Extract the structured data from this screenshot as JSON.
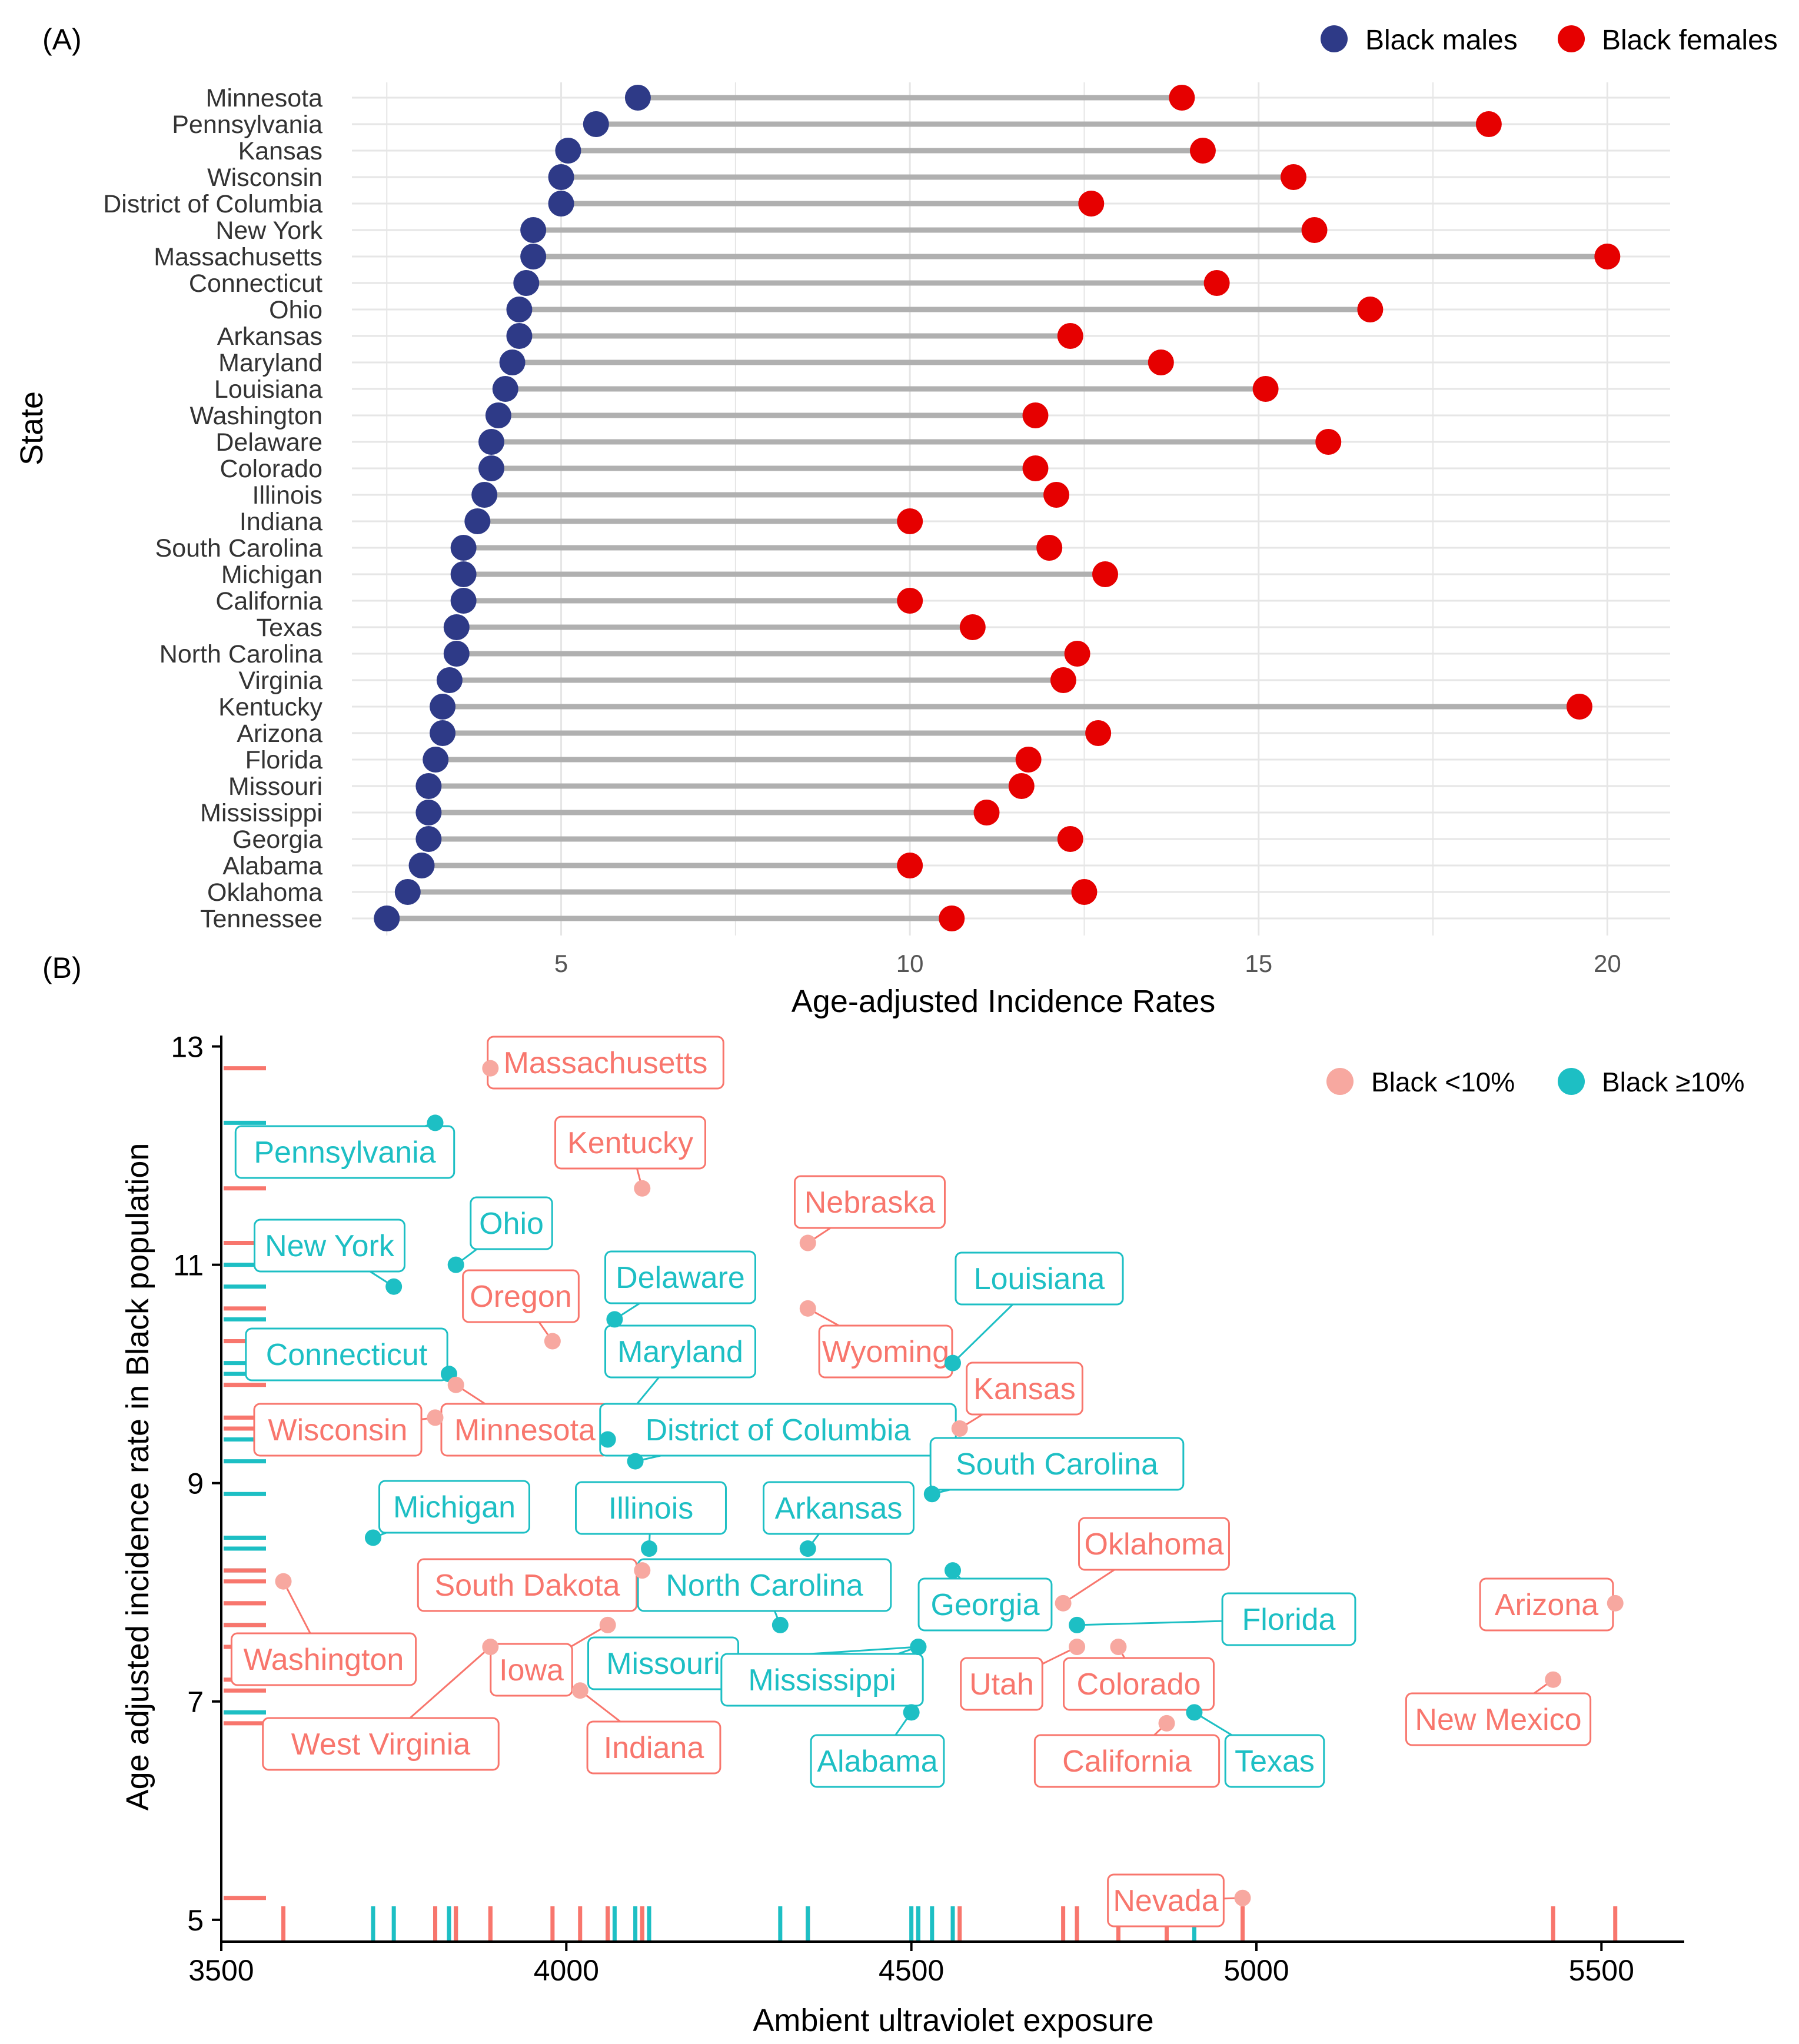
{
  "colors": {
    "male": "#2E3A87",
    "female": "#E60000",
    "segment": "#B0B0B0",
    "grid": "#E6E6E6",
    "low_black": "#F8766D",
    "low_black_point": "#F7A8A0",
    "high_black": "#1DBFC4",
    "text": "#000000",
    "axis_text": "#555555"
  },
  "panel_a": {
    "tag": "(A)",
    "chart_data": {
      "type": "dumbbell",
      "title": "",
      "xlabel": "Age-adjusted Incidence Rates",
      "ylabel": "State",
      "xlim": [
        2.0,
        20.9
      ],
      "xticks": [
        5,
        10,
        15,
        20
      ],
      "legend": [
        {
          "name": "Black males",
          "color_key": "male"
        },
        {
          "name": "Black females",
          "color_key": "female"
        }
      ],
      "legend_position": "top-right",
      "categories": [
        "Minnesota",
        "Pennsylvania",
        "Kansas",
        "Wisconsin",
        "District of Columbia",
        "New York",
        "Massachusetts",
        "Connecticut",
        "Ohio",
        "Arkansas",
        "Maryland",
        "Louisiana",
        "Washington",
        "Delaware",
        "Colorado",
        "Illinois",
        "Indiana",
        "South Carolina",
        "Michigan",
        "California",
        "Texas",
        "North Carolina",
        "Virginia",
        "Kentucky",
        "Arizona",
        "Florida",
        "Missouri",
        "Mississippi",
        "Georgia",
        "Alabama",
        "Oklahoma",
        "Tennessee"
      ],
      "series": [
        {
          "name": "Black males",
          "values": [
            6.1,
            5.5,
            5.1,
            5.0,
            5.0,
            4.6,
            4.6,
            4.5,
            4.4,
            4.4,
            4.3,
            4.2,
            4.1,
            4.0,
            4.0,
            3.9,
            3.8,
            3.6,
            3.6,
            3.6,
            3.5,
            3.5,
            3.4,
            3.3,
            3.3,
            3.2,
            3.1,
            3.1,
            3.1,
            3.0,
            2.8,
            2.5
          ]
        },
        {
          "name": "Black females",
          "values": [
            13.9,
            18.3,
            14.2,
            15.5,
            12.6,
            15.8,
            20.0,
            14.4,
            16.6,
            12.3,
            13.6,
            15.1,
            11.8,
            16.0,
            11.8,
            12.1,
            10.0,
            12.0,
            12.8,
            10.0,
            10.9,
            12.4,
            12.2,
            19.6,
            12.7,
            11.7,
            11.6,
            11.1,
            12.3,
            10.0,
            12.5,
            10.6
          ]
        }
      ]
    }
  },
  "panel_b": {
    "tag": "(B)",
    "chart_data": {
      "type": "scatter",
      "title": "",
      "xlabel": "Ambient ultraviolet exposure",
      "ylabel": "Age adjusted incidence rate in Black population",
      "xlim": [
        3500,
        5620
      ],
      "ylim": [
        4.8,
        13.1
      ],
      "xticks": [
        3500,
        4000,
        4500,
        5000,
        5500
      ],
      "yticks": [
        5,
        7,
        9,
        11,
        13
      ],
      "rug": true,
      "legend": [
        {
          "name": "Black <10%",
          "color_key": "low_black"
        },
        {
          "name": "Black ≥10%",
          "color_key": "high_black"
        }
      ],
      "legend_position": "top-right",
      "points": [
        {
          "state": "Massachusetts",
          "x": 3890,
          "y": 12.8,
          "group": "low"
        },
        {
          "state": "Pennsylvania",
          "x": 3810,
          "y": 12.3,
          "group": "high"
        },
        {
          "state": "Kentucky",
          "x": 4110,
          "y": 11.7,
          "group": "low"
        },
        {
          "state": "Nebraska",
          "x": 4350,
          "y": 11.2,
          "group": "low"
        },
        {
          "state": "Ohio",
          "x": 3840,
          "y": 11.0,
          "group": "high"
        },
        {
          "state": "New York",
          "x": 3750,
          "y": 10.8,
          "group": "high"
        },
        {
          "state": "Oregon",
          "x": 3980,
          "y": 10.3,
          "group": "low"
        },
        {
          "state": "Delaware",
          "x": 4070,
          "y": 10.5,
          "group": "high"
        },
        {
          "state": "Wyoming",
          "x": 4350,
          "y": 10.6,
          "group": "low"
        },
        {
          "state": "Louisiana",
          "x": 4560,
          "y": 10.1,
          "group": "high"
        },
        {
          "state": "Connecticut",
          "x": 3830,
          "y": 10.0,
          "group": "high"
        },
        {
          "state": "Maryland",
          "x": 4060,
          "y": 9.4,
          "group": "high"
        },
        {
          "state": "Wisconsin",
          "x": 3810,
          "y": 9.6,
          "group": "low"
        },
        {
          "state": "Minnesota",
          "x": 3840,
          "y": 9.9,
          "group": "low"
        },
        {
          "state": "Kansas",
          "x": 4570,
          "y": 9.5,
          "group": "low"
        },
        {
          "state": "District of Columbia",
          "x": 4100,
          "y": 9.2,
          "group": "high"
        },
        {
          "state": "South Carolina",
          "x": 4530,
          "y": 8.9,
          "group": "high"
        },
        {
          "state": "Michigan",
          "x": 3720,
          "y": 8.5,
          "group": "high"
        },
        {
          "state": "Illinois",
          "x": 4120,
          "y": 8.4,
          "group": "high"
        },
        {
          "state": "Arkansas",
          "x": 4350,
          "y": 8.4,
          "group": "high"
        },
        {
          "state": "Oklahoma",
          "x": 4720,
          "y": 7.9,
          "group": "low"
        },
        {
          "state": "Georgia",
          "x": 4560,
          "y": 8.2,
          "group": "high"
        },
        {
          "state": "South Dakota",
          "x": 4110,
          "y": 8.2,
          "group": "low"
        },
        {
          "state": "North Carolina",
          "x": 4310,
          "y": 7.7,
          "group": "high"
        },
        {
          "state": "Washington",
          "x": 3590,
          "y": 8.1,
          "group": "low"
        },
        {
          "state": "Florida",
          "x": 4740,
          "y": 7.7,
          "group": "high"
        },
        {
          "state": "Arizona",
          "x": 5520,
          "y": 7.9,
          "group": "low"
        },
        {
          "state": "Iowa",
          "x": 4060,
          "y": 7.7,
          "group": "low"
        },
        {
          "state": "Missouri",
          "x": 4510,
          "y": 7.5,
          "group": "high"
        },
        {
          "state": "Mississippi",
          "x": 4510,
          "y": 7.5,
          "group": "high"
        },
        {
          "state": "Utah",
          "x": 4740,
          "y": 7.5,
          "group": "low"
        },
        {
          "state": "Colorado",
          "x": 4800,
          "y": 7.5,
          "group": "low"
        },
        {
          "state": "West Virginia",
          "x": 3890,
          "y": 7.5,
          "group": "low"
        },
        {
          "state": "Indiana",
          "x": 4020,
          "y": 7.1,
          "group": "low"
        },
        {
          "state": "Alabama",
          "x": 4500,
          "y": 6.9,
          "group": "high"
        },
        {
          "state": "New Mexico",
          "x": 5430,
          "y": 7.2,
          "group": "low"
        },
        {
          "state": "Texas",
          "x": 4910,
          "y": 6.9,
          "group": "high"
        },
        {
          "state": "California",
          "x": 4870,
          "y": 6.8,
          "group": "low"
        },
        {
          "state": "Nevada",
          "x": 4980,
          "y": 5.2,
          "group": "low"
        }
      ]
    }
  }
}
